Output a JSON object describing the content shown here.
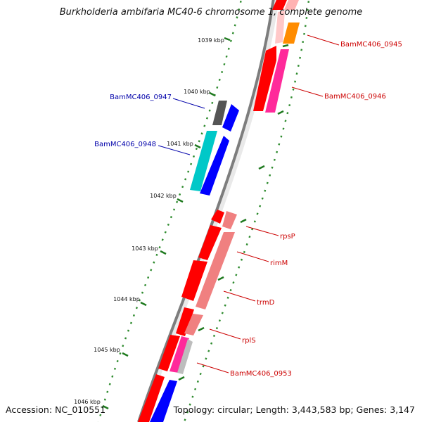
{
  "title": "Burkholderia ambifaria MC40-6 chromosome 1, complete genome",
  "accession": "Accession: NC_010551",
  "topology": "Topology: circular; Length: 3,443,583 bp; Genes: 3,147",
  "colors": {
    "backbone": "#8a8a8a",
    "dots": "#2e8b2e",
    "ticks": "#1f7a1f",
    "label_red": "#cc0000",
    "label_blue": "#0000aa"
  },
  "ticks": [
    {
      "label": "1039 kbp",
      "kbp": 1039
    },
    {
      "label": "1040 kbp",
      "kbp": 1040
    },
    {
      "label": "1041 kbp",
      "kbp": 1041
    },
    {
      "label": "1042 kbp",
      "kbp": 1042
    },
    {
      "label": "1043 kbp",
      "kbp": 1043
    },
    {
      "label": "1044 kbp",
      "kbp": 1044
    },
    {
      "label": "1045 kbp",
      "kbp": 1045
    },
    {
      "label": "1046 kbp",
      "kbp": 1046
    }
  ],
  "gene_labels": [
    {
      "text": "BamMC406_0945",
      "side": "right",
      "color": "red"
    },
    {
      "text": "BamMC406_0946",
      "side": "right",
      "color": "red"
    },
    {
      "text": "BamMC406_0947",
      "side": "left",
      "color": "blue"
    },
    {
      "text": "BamMC406_0948",
      "side": "left",
      "color": "blue"
    },
    {
      "text": "rpsP",
      "side": "right",
      "color": "red"
    },
    {
      "text": "rimM",
      "side": "right",
      "color": "red"
    },
    {
      "text": "trmD",
      "side": "right",
      "color": "red"
    },
    {
      "text": "rplS",
      "side": "right",
      "color": "red"
    },
    {
      "text": "BamMC406_0953",
      "side": "right",
      "color": "red"
    }
  ]
}
